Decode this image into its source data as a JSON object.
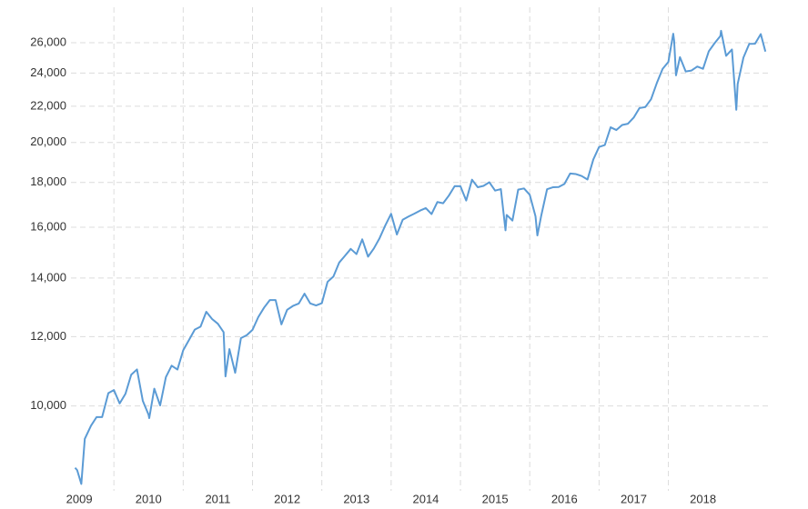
{
  "chart_data": {
    "type": "line",
    "log_scale_y": true,
    "grid": true,
    "x": [
      2009.44,
      2009.47,
      2009.53,
      2009.58,
      2009.67,
      2009.75,
      2009.83,
      2009.92,
      2010.0,
      2010.083,
      2010.167,
      2010.25,
      2010.333,
      2010.417,
      2010.5,
      2010.51,
      2010.583,
      2010.667,
      2010.75,
      2010.833,
      2010.917,
      2011.0,
      2011.083,
      2011.167,
      2011.25,
      2011.333,
      2011.417,
      2011.5,
      2011.583,
      2011.61,
      2011.667,
      2011.75,
      2011.833,
      2011.917,
      2012.0,
      2012.083,
      2012.167,
      2012.25,
      2012.333,
      2012.417,
      2012.5,
      2012.583,
      2012.667,
      2012.75,
      2012.833,
      2012.917,
      2013.0,
      2013.083,
      2013.167,
      2013.25,
      2013.333,
      2013.417,
      2013.5,
      2013.583,
      2013.667,
      2013.75,
      2013.833,
      2013.917,
      2014.0,
      2014.083,
      2014.167,
      2014.25,
      2014.333,
      2014.417,
      2014.5,
      2014.583,
      2014.667,
      2014.75,
      2014.833,
      2014.917,
      2015.0,
      2015.083,
      2015.167,
      2015.25,
      2015.333,
      2015.417,
      2015.5,
      2015.583,
      2015.65,
      2015.667,
      2015.75,
      2015.833,
      2015.917,
      2016.0,
      2016.083,
      2016.11,
      2016.167,
      2016.25,
      2016.333,
      2016.417,
      2016.5,
      2016.583,
      2016.667,
      2016.75,
      2016.833,
      2016.917,
      2017.0,
      2017.083,
      2017.167,
      2017.25,
      2017.333,
      2017.417,
      2017.5,
      2017.583,
      2017.667,
      2017.75,
      2017.833,
      2017.917,
      2018.0,
      2018.07,
      2018.083,
      2018.11,
      2018.167,
      2018.25,
      2018.333,
      2018.417,
      2018.5,
      2018.583,
      2018.667,
      2018.75,
      2018.76,
      2018.833,
      2018.917,
      2018.98,
      2019.0,
      2019.083,
      2019.167,
      2019.25,
      2019.333,
      2019.4
    ],
    "series": [
      {
        "color": "#5b9bd5",
        "values": [
          8500,
          8447,
          8146,
          9172,
          9496,
          9712,
          9713,
          10345,
          10428,
          10067,
          10325,
          10857,
          11009,
          10137,
          9774,
          9686,
          10466,
          10015,
          10788,
          11118,
          11006,
          11578,
          11892,
          12226,
          12320,
          12811,
          12570,
          12414,
          12143,
          10810,
          11614,
          10913,
          11955,
          12046,
          12218,
          12633,
          12952,
          13212,
          13214,
          12393,
          12880,
          13009,
          13091,
          13437,
          13096,
          13026,
          13104,
          13861,
          14054,
          14579,
          14840,
          15116,
          14910,
          15500,
          14810,
          15130,
          15546,
          16086,
          16577,
          15699,
          16322,
          16458,
          16581,
          16717,
          16827,
          16563,
          17098,
          17043,
          17391,
          17828,
          17823,
          17165,
          18133,
          17776,
          17841,
          18011,
          17620,
          17690,
          15871,
          16528,
          16285,
          17664,
          17720,
          17425,
          16466,
          15660,
          16517,
          17685,
          17774,
          17787,
          17930,
          18432,
          18401,
          18308,
          18142,
          19124,
          19763,
          19864,
          20812,
          20663,
          20941,
          21009,
          21350,
          21891,
          21948,
          22405,
          23377,
          24272,
          24719,
          26617,
          26149,
          23860,
          25029,
          24103,
          24163,
          24416,
          24271,
          25415,
          25965,
          26458,
          26828,
          25116,
          25538,
          21792,
          23327,
          24999,
          25916,
          25929,
          26593,
          25400
        ]
      }
    ],
    "xlim": [
      2009,
      2019.45
    ],
    "xticks": [
      2009,
      2010,
      2011,
      2012,
      2013,
      2014,
      2015,
      2016,
      2017,
      2018
    ],
    "ylim": [
      8000,
      27400
    ],
    "yticks": [
      {
        "value": 10000,
        "label": "10,000"
      },
      {
        "value": 12000,
        "label": "12,000"
      },
      {
        "value": 14000,
        "label": "14,000"
      },
      {
        "value": 16000,
        "label": "16,000"
      },
      {
        "value": 18000,
        "label": "18,000"
      },
      {
        "value": 20000,
        "label": "20,000"
      },
      {
        "value": 22000,
        "label": "22,000"
      },
      {
        "value": 24000,
        "label": "24,000"
      },
      {
        "value": 26000,
        "label": "26,000"
      }
    ]
  }
}
